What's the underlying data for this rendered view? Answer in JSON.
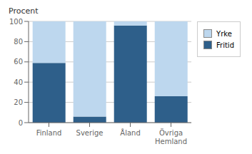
{
  "chart_data": {
    "type": "bar",
    "stacked": true,
    "ylabel": "Procent",
    "categories": [
      "Finland",
      "Sverige",
      "Åland",
      "Övriga\nHemland"
    ],
    "series": [
      {
        "name": "Fritid",
        "color": "#2E5F8A",
        "values": [
          59,
          6,
          96,
          26
        ]
      },
      {
        "name": "Yrke",
        "color": "#BDD7EE",
        "values": [
          41,
          94,
          4,
          74
        ]
      }
    ],
    "ylim": [
      0,
      100
    ],
    "yticks": [
      0,
      20,
      40,
      60,
      80,
      100
    ],
    "grid": true,
    "legend": "right"
  }
}
